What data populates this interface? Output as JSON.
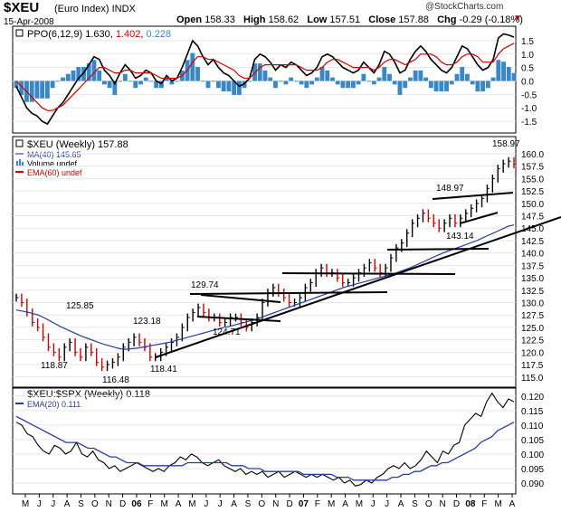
{
  "header": {
    "symbol": "$XEU",
    "name": "(Euro Index)",
    "exchange": "INDX",
    "date": "15-Apr-2008",
    "brand": "@StockCharts.com",
    "quote": {
      "open_label": "Open",
      "open": "158.33",
      "high_label": "High",
      "high": "158.62",
      "low_label": "Low",
      "low": "157.51",
      "close_label": "Close",
      "close": "157.88",
      "chg_label": "Chg",
      "chg": "-0.29 (-0.18%)"
    }
  },
  "colors": {
    "price_up": "#000000",
    "price_down": "#cc0000",
    "ma": "#2a3c9c",
    "ema": "#cc0000",
    "histogram": "#3a87c8",
    "trendline": "#000000"
  },
  "chart_data": [
    {
      "type": "line",
      "panel": "ppo",
      "legend": {
        "name": "PPO(6,12,9)",
        "ppo": "1.630",
        "signal": "1.402",
        "hist": "0.228"
      },
      "ylim": [
        -1.8,
        1.9
      ],
      "yticks": [
        "1.5",
        "1.0",
        "0.5",
        "0.0",
        "-0.5",
        "-1.0",
        "-1.5"
      ],
      "series": [
        {
          "values": [
            -0.2,
            -0.6,
            -1.0,
            -1.2,
            -1.3,
            -1.5,
            -1.6,
            -1.3,
            -1.0,
            -0.8,
            -0.5,
            -0.2,
            0.1,
            0.3,
            0.6,
            0.9,
            0.8,
            0.4,
            0.2,
            -0.1,
            0.3,
            0.6,
            0.4,
            0.1,
            0.2,
            0.4,
            0.3,
            0.0,
            -0.1,
            0.2,
            0.0,
            0.1,
            0.5,
            1.0,
            1.5,
            1.3,
            0.9,
            0.6,
            0.8,
            0.5,
            0.3,
            0.2,
            0.0,
            -0.2,
            -0.1,
            0.1,
            0.8,
            1.0,
            0.9,
            0.7,
            0.4,
            0.6,
            0.5,
            0.7,
            0.6,
            0.4,
            0.2,
            0.3,
            0.5,
            0.9,
            1.0,
            0.9,
            0.7,
            0.5,
            0.4,
            0.3,
            0.4,
            0.7,
            0.5,
            0.3,
            0.6,
            1.1,
            1.0,
            0.7,
            0.3,
            0.4,
            0.8,
            1.1,
            1.3,
            1.1,
            0.8,
            0.6,
            0.4,
            0.3,
            0.5,
            0.9,
            1.3,
            1.2,
            0.9,
            0.6,
            0.4,
            0.5,
            0.8,
            1.6,
            1.75,
            1.7,
            1.63
          ]
        },
        {
          "values": [
            0.0,
            -0.2,
            -0.4,
            -0.6,
            -0.8,
            -1.0,
            -1.1,
            -1.1,
            -1.0,
            -0.9,
            -0.7,
            -0.5,
            -0.3,
            -0.1,
            0.1,
            0.3,
            0.5,
            0.5,
            0.4,
            0.3,
            0.3,
            0.4,
            0.4,
            0.3,
            0.3,
            0.3,
            0.3,
            0.2,
            0.1,
            0.1,
            0.1,
            0.1,
            0.2,
            0.4,
            0.7,
            0.9,
            0.9,
            0.8,
            0.8,
            0.7,
            0.6,
            0.5,
            0.4,
            0.2,
            0.1,
            0.1,
            0.3,
            0.5,
            0.6,
            0.6,
            0.6,
            0.6,
            0.6,
            0.6,
            0.6,
            0.5,
            0.4,
            0.4,
            0.4,
            0.5,
            0.7,
            0.8,
            0.8,
            0.7,
            0.6,
            0.5,
            0.5,
            0.5,
            0.5,
            0.4,
            0.5,
            0.7,
            0.8,
            0.8,
            0.7,
            0.6,
            0.7,
            0.8,
            1.0,
            1.0,
            1.0,
            0.9,
            0.7,
            0.6,
            0.6,
            0.7,
            0.9,
            1.0,
            1.0,
            0.9,
            0.7,
            0.7,
            0.7,
            1.0,
            1.2,
            1.3,
            1.402
          ]
        }
      ]
    },
    {
      "type": "line",
      "panel": "price",
      "legend": {
        "main": "$XEU (Weekly) 157.88",
        "ma": "MA(40) 145.65",
        "volume": "Volume undef",
        "ema": "EMA(60) undef"
      },
      "ylim": [
        113.5,
        162
      ],
      "yticks": [
        "160.0",
        "157.5",
        "155.0",
        "152.5",
        "150.0",
        "147.5",
        "145.0",
        "142.5",
        "140.0",
        "137.5",
        "135.0",
        "132.5",
        "130.0",
        "127.5",
        "125.0",
        "122.5",
        "120.0",
        "117.5",
        "115.0"
      ],
      "annotations": [
        "125.85",
        "118.87",
        "116.48",
        "123.18",
        "118.41",
        "129.74",
        "124.71",
        "148.97",
        "143.14",
        "158.97"
      ],
      "series": [
        {
          "values": [
            131,
            130,
            128,
            126,
            125,
            123,
            121,
            120,
            119,
            121,
            122,
            120,
            119,
            121,
            120,
            118,
            117,
            117.5,
            118,
            119,
            121,
            122,
            123,
            122,
            121,
            119,
            119,
            120,
            121,
            122,
            123,
            125,
            127,
            128,
            129,
            128,
            127,
            127,
            126,
            126,
            127,
            127,
            126,
            125,
            126,
            127,
            130,
            132,
            133,
            132,
            131,
            130,
            130,
            131,
            133,
            134,
            136,
            137,
            136,
            136,
            135,
            134,
            134,
            135,
            136,
            137,
            138,
            137,
            136,
            137,
            139,
            141,
            142,
            144,
            146,
            147,
            148,
            147,
            146,
            145,
            146,
            147,
            146,
            147,
            148,
            149,
            150,
            151,
            153,
            155,
            157,
            158,
            158.5,
            157.88
          ]
        },
        {
          "values": [
            128.5,
            128.3,
            128.1,
            127.8,
            127.5,
            127.0,
            126.4,
            125.8,
            125.2,
            124.7,
            124.2,
            123.7,
            123.2,
            122.8,
            122.4,
            122.0,
            121.6,
            121.3,
            121.0,
            120.7,
            120.6,
            120.7,
            120.8,
            121.0,
            121.2,
            121.4,
            121.6,
            121.8,
            122.0,
            122.3,
            122.6,
            122.9,
            123.2,
            123.5,
            123.8,
            124.1,
            124.4,
            124.7,
            125.0,
            125.2,
            125.5,
            125.8,
            126.1,
            126.4,
            126.7,
            127.1,
            127.5,
            127.9,
            128.3,
            128.7,
            129.1,
            129.5,
            129.9,
            130.3,
            130.7,
            131.1,
            131.5,
            131.9,
            132.3,
            132.7,
            133.1,
            133.4,
            133.7,
            134.0,
            134.3,
            134.6,
            134.9,
            135.2,
            135.5,
            135.8,
            136.2,
            136.6,
            137.0,
            137.5,
            138.0,
            138.5,
            139.0,
            139.5,
            140.0,
            140.4,
            140.8,
            141.2,
            141.6,
            142.0,
            142.4,
            142.9,
            143.4,
            143.9,
            144.4,
            144.9,
            145.4,
            145.65
          ]
        }
      ]
    },
    {
      "type": "line",
      "panel": "ratio",
      "legend": {
        "main": "$XEU:$SPX (Weekly) 0.118",
        "ema": "EMA(20) 0.111"
      },
      "ylim": [
        0.0875,
        0.1215
      ],
      "yticks": [
        "0.120",
        "0.115",
        "0.110",
        "0.105",
        "0.100",
        "0.095",
        "0.090"
      ],
      "series": [
        {
          "values": [
            0.111,
            0.11,
            0.107,
            0.106,
            0.103,
            0.101,
            0.1,
            0.103,
            0.102,
            0.1,
            0.101,
            0.104,
            0.1,
            0.099,
            0.101,
            0.098,
            0.097,
            0.095,
            0.096,
            0.094,
            0.095,
            0.096,
            0.097,
            0.096,
            0.095,
            0.094,
            0.095,
            0.094,
            0.096,
            0.097,
            0.099,
            0.098,
            0.1,
            0.099,
            0.097,
            0.096,
            0.097,
            0.098,
            0.096,
            0.095,
            0.094,
            0.095,
            0.093,
            0.094,
            0.093,
            0.094,
            0.092,
            0.093,
            0.094,
            0.092,
            0.093,
            0.094,
            0.093,
            0.092,
            0.093,
            0.092,
            0.093,
            0.092,
            0.091,
            0.092,
            0.09,
            0.091,
            0.089,
            0.0895,
            0.091,
            0.09,
            0.092,
            0.093,
            0.095,
            0.096,
            0.095,
            0.097,
            0.095,
            0.096,
            0.098,
            0.101,
            0.099,
            0.097,
            0.101,
            0.1,
            0.103,
            0.104,
            0.11,
            0.112,
            0.114,
            0.113,
            0.118,
            0.121,
            0.118,
            0.116,
            0.119,
            0.118
          ]
        },
        {
          "values": [
            0.113,
            0.112,
            0.111,
            0.11,
            0.109,
            0.108,
            0.107,
            0.106,
            0.105,
            0.104,
            0.104,
            0.104,
            0.103,
            0.102,
            0.102,
            0.101,
            0.1,
            0.099,
            0.099,
            0.098,
            0.097,
            0.097,
            0.097,
            0.096,
            0.096,
            0.096,
            0.096,
            0.096,
            0.096,
            0.096,
            0.096,
            0.097,
            0.097,
            0.097,
            0.097,
            0.097,
            0.097,
            0.097,
            0.097,
            0.096,
            0.096,
            0.096,
            0.095,
            0.095,
            0.095,
            0.094,
            0.094,
            0.094,
            0.094,
            0.094,
            0.094,
            0.094,
            0.093,
            0.093,
            0.093,
            0.093,
            0.093,
            0.093,
            0.092,
            0.092,
            0.092,
            0.091,
            0.091,
            0.091,
            0.091,
            0.091,
            0.091,
            0.091,
            0.092,
            0.092,
            0.093,
            0.093,
            0.094,
            0.094,
            0.095,
            0.096,
            0.096,
            0.097,
            0.097,
            0.098,
            0.099,
            0.1,
            0.101,
            0.102,
            0.104,
            0.105,
            0.106,
            0.108,
            0.109,
            0.11,
            0.111
          ]
        }
      ]
    }
  ],
  "xaxis": {
    "labels": [
      "M",
      "J",
      "J",
      "A",
      "S",
      "O",
      "N",
      "D",
      "06",
      "F",
      "M",
      "A",
      "M",
      "J",
      "J",
      "A",
      "S",
      "O",
      "N",
      "D",
      "07",
      "F",
      "M",
      "A",
      "M",
      "J",
      "J",
      "A",
      "S",
      "O",
      "N",
      "D",
      "08",
      "F",
      "M",
      "A"
    ],
    "bold": [
      "06",
      "07",
      "08"
    ]
  }
}
